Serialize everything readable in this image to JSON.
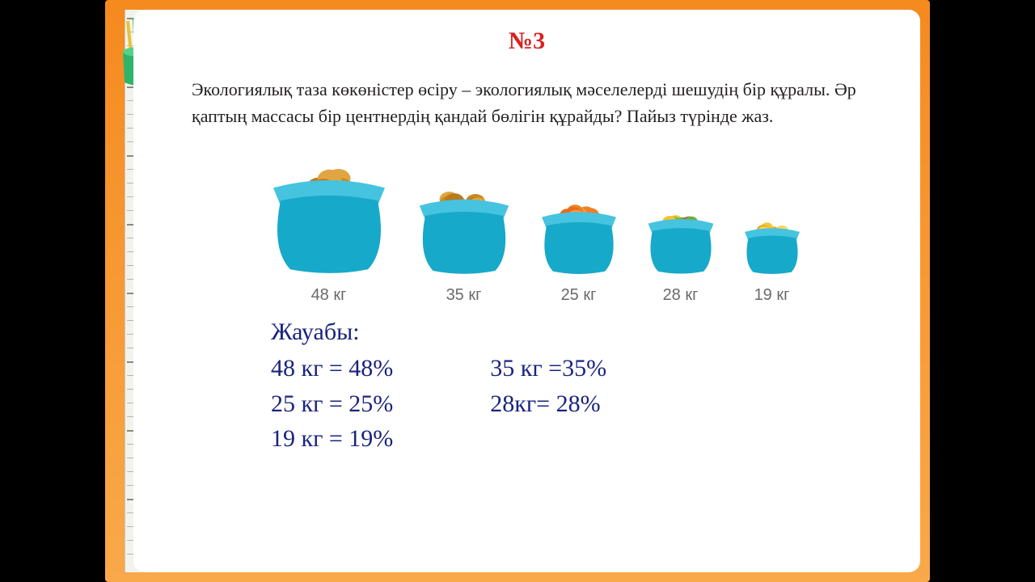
{
  "title": "№3",
  "prompt": "Экологиялық таза көкөністер өсіру – экологиялық мәселелерді шешудің бір құралы. Әр қаптың массасы бір центнердің қандай бөлігін құрайды? Пайыз түрінде жаз.",
  "bags": {
    "bag_color": "#17a9c9",
    "bag_cuff_color": "#46c3df",
    "items": [
      {
        "label": "48 кг",
        "size": 150,
        "fill": "#d99a2b",
        "type": "potato"
      },
      {
        "label": "35 кг",
        "size": 120,
        "fill": "#e0a13a",
        "type": "potato"
      },
      {
        "label": "25 кг",
        "size": 100,
        "fill": "#e9872a",
        "type": "carrot"
      },
      {
        "label": "28 кг",
        "size": 88,
        "fill": "#d63a2e",
        "type": "pepper"
      },
      {
        "label": "19 кг",
        "size": 74,
        "fill": "#f1b93b",
        "type": "corn"
      }
    ]
  },
  "answer": {
    "header": "Жауабы:",
    "pairs": [
      [
        "48 кг = 48%",
        "35 кг =35%"
      ],
      [
        "25 кг = 25%",
        "28кг= 28%"
      ],
      [
        "19 кг = 19%",
        ""
      ]
    ]
  },
  "colors": {
    "title": "#d8221f",
    "answer": "#1a237e",
    "slide_outer_top": "#f58a1f",
    "slide_outer_bottom": "#f9a94a",
    "background": "#000000"
  }
}
